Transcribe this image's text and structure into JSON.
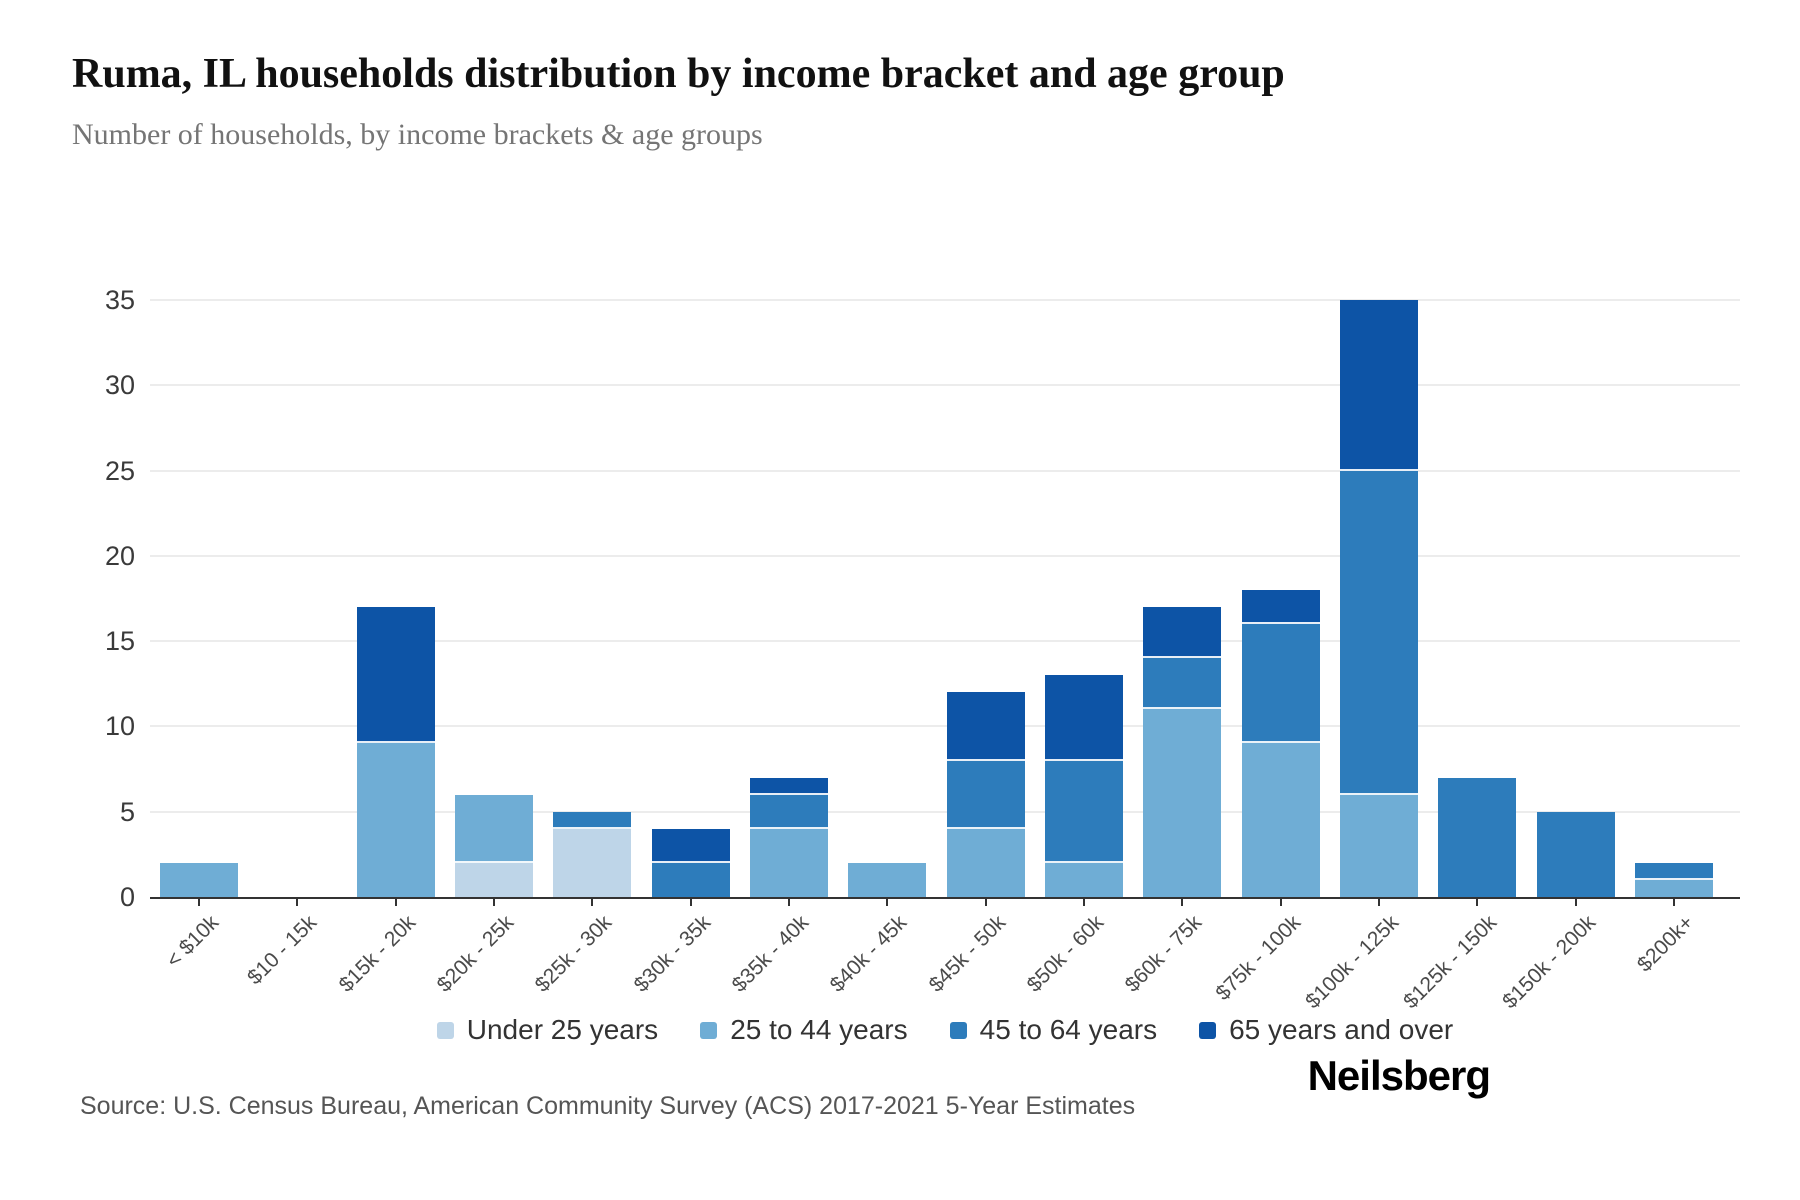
{
  "header": {
    "title": "Ruma, IL households distribution by income bracket and age group",
    "subtitle": "Number of households, by income brackets & age groups"
  },
  "footer": {
    "source": "Source: U.S. Census Bureau, American Community Survey (ACS) 2017-2021 5-Year Estimates",
    "brand": "Neilsberg"
  },
  "colors": {
    "under_25": "#bed5e8",
    "25_to_44": "#6fadd5",
    "45_to_64": "#2d7cbb",
    "65_and_over": "#0d54a6",
    "gridline": "#ececec",
    "axis_line": "#333333"
  },
  "chart_data": {
    "type": "bar",
    "stacked": true,
    "title": "Ruma, IL households distribution by income bracket and age group",
    "subtitle": "Number of households, by income brackets & age groups",
    "xlabel": "",
    "ylabel": "",
    "ylim": [
      0,
      35
    ],
    "yticks": [
      0,
      5,
      10,
      15,
      20,
      25,
      30,
      35
    ],
    "grid": true,
    "legend_position": "bottom",
    "categories": [
      "< $10k",
      "$10 - 15k",
      "$15k - 20k",
      "$20k - 25k",
      "$25k - 30k",
      "$30k - 35k",
      "$35k - 40k",
      "$40k - 45k",
      "$45k - 50k",
      "$50k - 60k",
      "$60k - 75k",
      "$75k - 100k",
      "$100k - 125k",
      "$125k - 150k",
      "$150k - 200k",
      "$200k+"
    ],
    "series": [
      {
        "name": "Under 25 years",
        "color": "#bed5e8",
        "values": [
          0,
          0,
          0,
          2,
          4,
          0,
          0,
          0,
          0,
          0,
          0,
          0,
          0,
          0,
          0,
          0
        ]
      },
      {
        "name": "25 to 44 years",
        "color": "#6fadd5",
        "values": [
          2,
          0,
          9,
          4,
          0,
          0,
          4,
          2,
          4,
          2,
          11,
          9,
          6,
          0,
          0,
          1
        ]
      },
      {
        "name": "45 to 64 years",
        "color": "#2d7cbb",
        "values": [
          0,
          0,
          0,
          0,
          1,
          2,
          2,
          0,
          4,
          6,
          3,
          7,
          19,
          7,
          5,
          1
        ]
      },
      {
        "name": "65 years and over",
        "color": "#0d54a6",
        "values": [
          0,
          0,
          8,
          0,
          0,
          2,
          1,
          0,
          4,
          5,
          3,
          2,
          10,
          0,
          0,
          0
        ]
      }
    ],
    "bar_totals": [
      2,
      0,
      17,
      6,
      5,
      4,
      7,
      2,
      12,
      13,
      17,
      18,
      35,
      7,
      5,
      2
    ]
  }
}
